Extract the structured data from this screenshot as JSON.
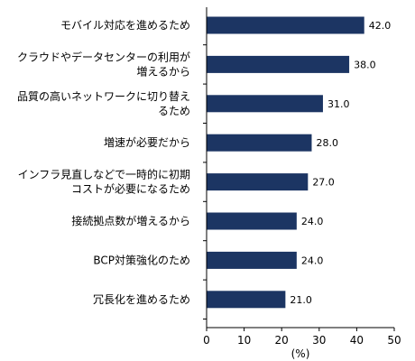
{
  "chart_data": {
    "type": "bar",
    "orientation": "horizontal",
    "categories": [
      [
        "モバイル対応を進めるため"
      ],
      [
        "クラウドやデータセンターの利用が",
        "増えるから"
      ],
      [
        "品質の高いネットワークに切り替え",
        "るため"
      ],
      [
        "増速が必要だから"
      ],
      [
        "インフラ見直しなどで一時的に初期",
        "コストが必要になるため"
      ],
      [
        "接続拠点数が増えるから"
      ],
      [
        "BCP対策強化のため"
      ],
      [
        "冗長化を進めるため"
      ]
    ],
    "values": [
      42.0,
      38.0,
      31.0,
      28.0,
      27.0,
      24.0,
      24.0,
      21.0
    ],
    "value_labels": [
      "42.0",
      "38.0",
      "31.0",
      "28.0",
      "27.0",
      "24.0",
      "24.0",
      "21.0"
    ],
    "xlim": [
      0,
      50
    ],
    "xticks": [
      "0",
      "10",
      "20",
      "30",
      "40",
      "50"
    ],
    "xlabel": "(%)",
    "grid": false,
    "bar_color": "#1c3563"
  }
}
